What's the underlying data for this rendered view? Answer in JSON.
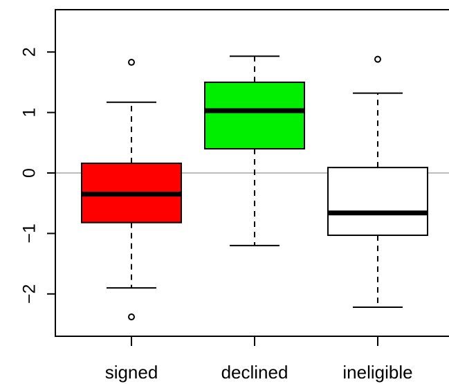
{
  "chart_data": {
    "type": "boxplot",
    "categories": [
      "signed",
      "declined",
      "ineligible"
    ],
    "boxes": [
      {
        "name": "signed",
        "color": "#ff0000",
        "whisker_low": -1.9,
        "q1": -0.82,
        "median": -0.35,
        "q3": 0.16,
        "whisker_high": 1.17,
        "outliers": [
          1.83,
          -2.38
        ]
      },
      {
        "name": "declined",
        "color": "#00ee00",
        "whisker_low": -1.2,
        "q1": 0.4,
        "median": 1.03,
        "q3": 1.5,
        "whisker_high": 1.93,
        "outliers": []
      },
      {
        "name": "ineligible",
        "color": "#ffffff",
        "whisker_low": -2.22,
        "q1": -1.03,
        "median": -0.66,
        "q3": 0.09,
        "whisker_high": 1.32,
        "outliers": [
          1.88
        ]
      }
    ],
    "y_ticks": [
      -2,
      -1,
      0,
      1,
      2
    ],
    "y_tick_labels": [
      "−2",
      "−1",
      "0",
      "1",
      "2"
    ],
    "ylim": [
      -2.7,
      2.7
    ],
    "reference_line": {
      "y": 0,
      "color": "#bbbbbb"
    },
    "title": "",
    "xlabel": "",
    "ylabel": "",
    "grid": false,
    "legend": "none"
  }
}
